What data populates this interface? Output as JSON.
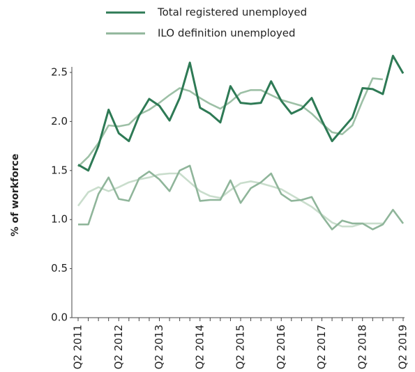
{
  "chart_data": {
    "type": "line",
    "y_label": "% of workforce",
    "categories": [
      "Q2 2011",
      null,
      null,
      null,
      "Q2 2012",
      null,
      null,
      null,
      "Q2 2013",
      null,
      null,
      null,
      "Q2 2014",
      null,
      null,
      null,
      "Q2 2015",
      null,
      null,
      null,
      "Q2 2016",
      null,
      null,
      null,
      "Q2 2017",
      null,
      null,
      null,
      "Q2 2018",
      null,
      null,
      null,
      "Q2 2019"
    ],
    "series": [
      {
        "name": "Total registered unemployed",
        "color": "#2e7a55",
        "values": [
          1.56,
          1.5,
          1.75,
          2.12,
          1.88,
          1.8,
          2.06,
          2.23,
          2.16,
          2.01,
          2.24,
          2.6,
          2.14,
          2.08,
          1.99,
          2.36,
          2.19,
          2.18,
          2.19,
          2.41,
          2.21,
          2.08,
          2.13,
          2.24,
          2.01,
          1.8,
          1.92,
          2.04,
          2.34,
          2.33,
          2.28,
          2.67,
          2.49
        ]
      },
      {
        "color": "#9dc0a6",
        "values": [
          1.54,
          1.64,
          1.78,
          1.96,
          1.95,
          1.97,
          2.07,
          2.12,
          2.19,
          2.27,
          2.34,
          2.31,
          2.24,
          2.18,
          2.13,
          2.2,
          2.29,
          2.32,
          2.32,
          2.27,
          2.22,
          2.19,
          2.16,
          2.08,
          1.98,
          1.89,
          1.87,
          1.96,
          2.21,
          2.44,
          2.43,
          null,
          null
        ]
      },
      {
        "name": "ILO definition unemployed",
        "color": "#8fb59a",
        "values": [
          0.95,
          0.95,
          1.26,
          1.43,
          1.21,
          1.19,
          1.42,
          1.49,
          1.41,
          1.29,
          1.5,
          1.55,
          1.19,
          1.2,
          1.2,
          1.4,
          1.17,
          1.32,
          1.38,
          1.47,
          1.26,
          1.19,
          1.2,
          1.23,
          1.04,
          0.9,
          0.99,
          0.96,
          0.96,
          0.9,
          0.95,
          1.1,
          0.96
        ]
      },
      {
        "color": "#c9ddcc",
        "values": [
          1.14,
          1.28,
          1.33,
          1.29,
          1.33,
          1.38,
          1.41,
          1.43,
          1.46,
          1.47,
          1.47,
          1.38,
          1.29,
          1.24,
          1.22,
          1.3,
          1.37,
          1.39,
          1.37,
          1.34,
          1.31,
          1.25,
          1.19,
          1.13,
          1.05,
          0.97,
          0.93,
          0.93,
          0.96,
          0.96,
          0.96,
          null,
          null
        ]
      }
    ],
    "ylim": [
      0,
      2.5
    ],
    "yticks": [
      {
        "value": 0,
        "label": "0.0"
      },
      0.5,
      {
        "value": 1,
        "label": "1.0"
      },
      1.5,
      {
        "value": 2,
        "label": "2.0"
      },
      2.5
    ]
  }
}
